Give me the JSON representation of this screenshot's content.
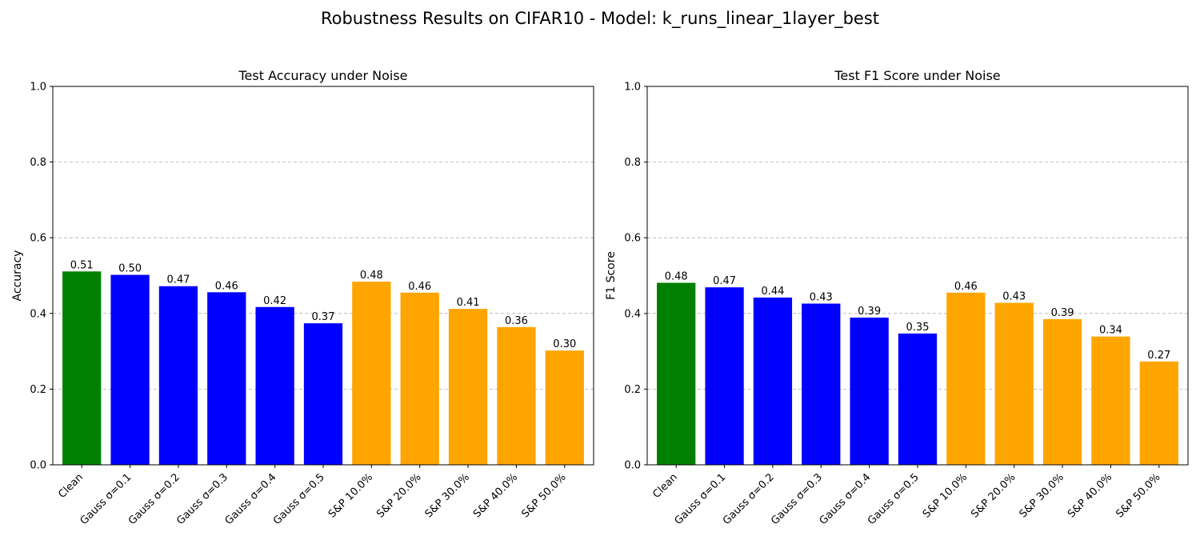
{
  "figure_title": "Robustness Results on CIFAR10 - Model: k_runs_linear_1layer_best",
  "colors": {
    "clean": "#008000",
    "gauss": "#0000ff",
    "sp": "#ffa500",
    "grid": "#b0b0b0"
  },
  "chart_data": [
    {
      "type": "bar",
      "title": "Test Accuracy under Noise",
      "xlabel": "",
      "ylabel": "Accuracy",
      "ylim": [
        0,
        1.0
      ],
      "yticks": [
        "0.0",
        "0.2",
        "0.4",
        "0.6",
        "0.8",
        "1.0"
      ],
      "grid": "y-dashed",
      "categories": [
        "Clean",
        "Gauss σ=0.1",
        "Gauss σ=0.2",
        "Gauss σ=0.3",
        "Gauss σ=0.4",
        "Gauss σ=0.5",
        "S&P 10.0%",
        "S&P 20.0%",
        "S&P 30.0%",
        "S&P 40.0%",
        "S&P 50.0%"
      ],
      "values": [
        0.511,
        0.502,
        0.472,
        0.456,
        0.417,
        0.374,
        0.484,
        0.455,
        0.412,
        0.364,
        0.302
      ],
      "labels": [
        "0.51",
        "0.50",
        "0.47",
        "0.46",
        "0.42",
        "0.37",
        "0.48",
        "0.46",
        "0.41",
        "0.36",
        "0.30"
      ],
      "bar_groups": [
        "clean",
        "gauss",
        "gauss",
        "gauss",
        "gauss",
        "gauss",
        "sp",
        "sp",
        "sp",
        "sp",
        "sp"
      ]
    },
    {
      "type": "bar",
      "title": "Test F1 Score under Noise",
      "xlabel": "",
      "ylabel": "F1 Score",
      "ylim": [
        0,
        1.0
      ],
      "yticks": [
        "0.0",
        "0.2",
        "0.4",
        "0.6",
        "0.8",
        "1.0"
      ],
      "grid": "y-dashed",
      "categories": [
        "Clean",
        "Gauss σ=0.1",
        "Gauss σ=0.2",
        "Gauss σ=0.3",
        "Gauss σ=0.4",
        "Gauss σ=0.5",
        "S&P 10.0%",
        "S&P 20.0%",
        "S&P 30.0%",
        "S&P 40.0%",
        "S&P 50.0%"
      ],
      "values": [
        0.481,
        0.469,
        0.442,
        0.426,
        0.389,
        0.347,
        0.455,
        0.428,
        0.385,
        0.339,
        0.273
      ],
      "labels": [
        "0.48",
        "0.47",
        "0.44",
        "0.43",
        "0.39",
        "0.35",
        "0.46",
        "0.43",
        "0.39",
        "0.34",
        "0.27"
      ],
      "bar_groups": [
        "clean",
        "gauss",
        "gauss",
        "gauss",
        "gauss",
        "gauss",
        "sp",
        "sp",
        "sp",
        "sp",
        "sp"
      ]
    }
  ]
}
